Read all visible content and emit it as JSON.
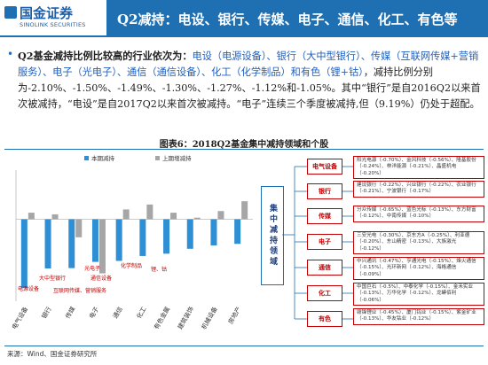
{
  "header": {
    "logo": "国金证券",
    "logo_sub": "SINOLINK SECURITIES",
    "title": "Q2减持：电设、银行、传媒、电子、通信、化工、有色等"
  },
  "paragraph": {
    "lead": "Q2基金减持比例比较高的行业依次为：",
    "highlight": "电设（电源设备）、银行（大中型银行）、传媒（互联网传媒+营销服务）、电子（光电子）、通信（通信设备）、化工（化学制品）和有色（锂+钴）",
    "body": "，减持比例分别为-2.10%、-1.50%、-1.49%、-1.30%、-1.27%、-1.12%和-1.05%。其中“银行”是自2016Q2以来首次被减持，“电设”是自2017Q2以来首次被减持。“电子”连续三个季度被减持,但（9.19%）仍处于超配。"
  },
  "figure_title": "图表6：2018Q2基金集中减持领域和个股",
  "chart_data": {
    "type": "bar",
    "categories": [
      "电气设备",
      "银行",
      "传媒",
      "电子",
      "通信",
      "化工",
      "有色金属",
      "建筑装饰",
      "机械设备",
      "房地产"
    ],
    "series": [
      {
        "name": "本期减持",
        "color": "#2e8fd4",
        "values": [
          -2.1,
          -1.5,
          -1.49,
          -1.3,
          -1.27,
          -1.12,
          -1.05,
          -0.9,
          -0.8,
          -0.75
        ]
      },
      {
        "name": "上期增减持",
        "color": "#a6a6a6",
        "values": [
          0.2,
          0.15,
          -0.55,
          -1.65,
          0.3,
          0.45,
          0.2,
          0.05,
          0.25,
          0.55
        ]
      }
    ],
    "ylim": [
      -2.5,
      1.5
    ],
    "annotations": [
      "电源设备",
      "大中型银行",
      "互联网传媒、营销服务",
      "光电子",
      "通信设备",
      "化学制品",
      "锂、钴"
    ]
  },
  "diagram": {
    "center": "集中减持领域",
    "nodes": [
      {
        "label": "电气设备",
        "stocks": "阳光电源（-0.70%）、金风科技（-0.56%）、隆基股份（-0.24%）、林洋能源（-0.21%）、晶盛机电（-0.20%）"
      },
      {
        "label": "银行",
        "stocks": "建设银行（-0.22%）、兴业银行（-0.22%）、农业银行（-0.21%）、宁波银行（-0.17%）"
      },
      {
        "label": "传媒",
        "stocks": "分众传媒（-0.65%）、蓝色光标（-0.13%）、东方财富（-0.12%）、中南传媒（-0.10%）"
      },
      {
        "label": "电子",
        "stocks": "三安光电（-0.30%）、京东方A（-0.25%）、利亚德（-0.20%）、东山精密（-0.13%）、大族激光（-0.12%）"
      },
      {
        "label": "通信",
        "stocks": "中兴通讯（-0.47%）、亨通光电（-0.15%）、烽火通信（-0.15%）、光环新网（-0.12%）、海格通信（-0.09%）"
      },
      {
        "label": "化工",
        "stocks": "中国巨石（-0.5%）、中泰化学（-0.15%）、金禾实业（-0.13%）、万华化学（-0.12%）、龙蟒佰利（-0.06%）"
      },
      {
        "label": "有色",
        "stocks": "赣锋锂业（-0.45%）、厦门钨业（-0.15%）、紫金矿业（-0.13%）、华友钴业（-0.12%）"
      }
    ]
  },
  "source": "来源：Wind、国金证券研究所"
}
